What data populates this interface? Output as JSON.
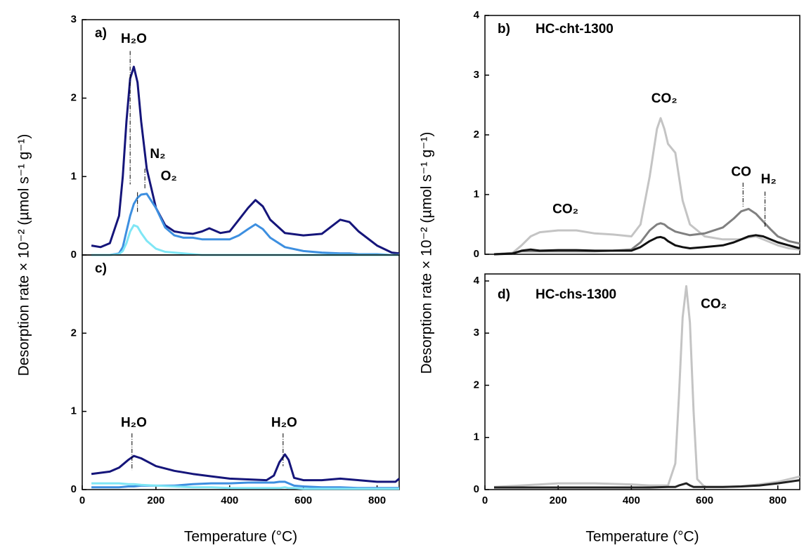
{
  "chart_data": [
    {
      "type": "line",
      "panel_label": "a)",
      "y_label": "Desorption rate × 10⁻² (µmol s⁻¹ g⁻¹)",
      "x": [
        25,
        50,
        75,
        100,
        110,
        120,
        130,
        140,
        150,
        160,
        175,
        200,
        225,
        250,
        275,
        300,
        325,
        345,
        375,
        400,
        425,
        450,
        470,
        490,
        510,
        550,
        600,
        650,
        700,
        725,
        750,
        800,
        840,
        860
      ],
      "xlim": [
        0,
        860
      ],
      "ylim": [
        0,
        3
      ],
      "yticks": [
        0,
        1,
        2,
        3
      ],
      "series": [
        {
          "name": "H₂O",
          "color": "#15157a",
          "label_color": "#1f1fd6",
          "values": [
            0.12,
            0.1,
            0.15,
            0.5,
            1.0,
            1.7,
            2.25,
            2.4,
            2.2,
            1.7,
            1.1,
            0.6,
            0.38,
            0.3,
            0.28,
            0.27,
            0.3,
            0.34,
            0.28,
            0.3,
            0.45,
            0.6,
            0.7,
            0.62,
            0.45,
            0.28,
            0.25,
            0.27,
            0.45,
            0.42,
            0.3,
            0.12,
            0.03,
            0.02
          ]
        },
        {
          "name": "N₂",
          "color": "#3d8fe0",
          "label_color": "#35a8ec",
          "values": [
            0,
            0,
            0,
            0.02,
            0.1,
            0.3,
            0.5,
            0.65,
            0.73,
            0.77,
            0.78,
            0.6,
            0.35,
            0.25,
            0.22,
            0.22,
            0.2,
            0.2,
            0.2,
            0.2,
            0.25,
            0.33,
            0.39,
            0.33,
            0.22,
            0.1,
            0.05,
            0.03,
            0.02,
            0.02,
            0.01,
            0.01,
            0,
            0
          ]
        },
        {
          "name": "O₂",
          "color": "#7fe6f5",
          "label_color": "#3fdcf0",
          "values": [
            0,
            0,
            0,
            0.01,
            0.05,
            0.15,
            0.3,
            0.38,
            0.36,
            0.28,
            0.18,
            0.08,
            0.04,
            0.03,
            0.02,
            0.01,
            0,
            0,
            0,
            0,
            0,
            0,
            0,
            0,
            0,
            0,
            0,
            0,
            0,
            0,
            0,
            0,
            0,
            0
          ]
        }
      ]
    },
    {
      "type": "line",
      "panel_label": "c)",
      "x_label": "Temperature (°C)",
      "x": [
        25,
        75,
        100,
        125,
        140,
        160,
        200,
        250,
        300,
        350,
        400,
        450,
        500,
        520,
        535,
        550,
        560,
        575,
        600,
        650,
        700,
        750,
        800,
        850,
        860
      ],
      "xlim": [
        0,
        860
      ],
      "xticks": [
        0,
        200,
        400,
        600,
        800
      ],
      "ylim": [
        0,
        3
      ],
      "yticks": [
        0,
        1,
        2
      ],
      "series": [
        {
          "name": "H₂O",
          "color": "#15157a",
          "label_color": "#1f1fd6",
          "values": [
            0.2,
            0.23,
            0.28,
            0.38,
            0.43,
            0.4,
            0.3,
            0.24,
            0.2,
            0.17,
            0.14,
            0.13,
            0.12,
            0.18,
            0.35,
            0.45,
            0.38,
            0.15,
            0.12,
            0.12,
            0.14,
            0.12,
            0.1,
            0.1,
            0.14
          ]
        },
        {
          "color": "#3d8fe0",
          "values": [
            0.03,
            0.03,
            0.03,
            0.04,
            0.04,
            0.05,
            0.05,
            0.05,
            0.07,
            0.08,
            0.08,
            0.09,
            0.09,
            0.09,
            0.1,
            0.1,
            0.08,
            0.05,
            0.04,
            0.03,
            0.03,
            0.02,
            0.02,
            0.02,
            0.02
          ]
        },
        {
          "color": "#7fe6f5",
          "values": [
            0.08,
            0.08,
            0.08,
            0.07,
            0.07,
            0.06,
            0.05,
            0.04,
            0.03,
            0.03,
            0.02,
            0.02,
            0.02,
            0.02,
            0.02,
            0.03,
            0.02,
            0.02,
            0.01,
            0.01,
            0.01,
            0.01,
            0.01,
            0.01,
            0.01
          ]
        }
      ]
    },
    {
      "type": "line",
      "panel_label": "b)",
      "subtitle": "HC-cht-1300",
      "subtitle_color": "#f4a07a",
      "y_label": "Desorption rate × 10⁻² (µmol s⁻¹ g⁻¹)",
      "x": [
        25,
        75,
        100,
        125,
        150,
        200,
        250,
        300,
        350,
        400,
        425,
        450,
        470,
        480,
        490,
        500,
        520,
        540,
        560,
        600,
        650,
        680,
        700,
        720,
        740,
        760,
        780,
        800,
        830,
        860
      ],
      "xlim": [
        0,
        860
      ],
      "ylim": [
        0,
        4
      ],
      "yticks": [
        0,
        1,
        2,
        3,
        4
      ],
      "series": [
        {
          "name": "CO₂",
          "color": "#c4c4c4",
          "label_color": "#a9b0b0",
          "values": [
            0,
            0.02,
            0.15,
            0.3,
            0.37,
            0.4,
            0.4,
            0.35,
            0.33,
            0.3,
            0.5,
            1.3,
            2.1,
            2.28,
            2.1,
            1.85,
            1.7,
            0.9,
            0.5,
            0.3,
            0.25,
            0.25,
            0.25,
            0.28,
            0.3,
            0.25,
            0.2,
            0.15,
            0.1,
            0.08
          ]
        },
        {
          "name": "CO",
          "color": "#808080",
          "label_color": "#808080",
          "values": [
            0,
            0.02,
            0.05,
            0.05,
            0.05,
            0.05,
            0.05,
            0.05,
            0.06,
            0.08,
            0.2,
            0.4,
            0.5,
            0.52,
            0.5,
            0.45,
            0.38,
            0.35,
            0.32,
            0.35,
            0.45,
            0.6,
            0.72,
            0.76,
            0.68,
            0.55,
            0.42,
            0.3,
            0.22,
            0.18
          ]
        },
        {
          "name": "H₂",
          "color": "#111111",
          "label_color": "#111111",
          "values": [
            0,
            0.01,
            0.06,
            0.08,
            0.06,
            0.07,
            0.07,
            0.06,
            0.06,
            0.06,
            0.12,
            0.22,
            0.28,
            0.29,
            0.27,
            0.22,
            0.15,
            0.12,
            0.1,
            0.12,
            0.15,
            0.2,
            0.25,
            0.3,
            0.32,
            0.3,
            0.25,
            0.2,
            0.15,
            0.1
          ]
        }
      ]
    },
    {
      "type": "line",
      "panel_label": "d)",
      "subtitle": "HC-chs-1300",
      "subtitle_color": "#b5b5b5",
      "x_label": "Temperature (°C)",
      "x": [
        25,
        100,
        200,
        300,
        400,
        450,
        500,
        520,
        530,
        540,
        550,
        560,
        570,
        580,
        600,
        650,
        700,
        750,
        800,
        860
      ],
      "xlim": [
        0,
        860
      ],
      "xticks": [
        0,
        200,
        400,
        600,
        800
      ],
      "ylim": [
        0,
        4
      ],
      "yticks": [
        0,
        1,
        2,
        3,
        4
      ],
      "series": [
        {
          "name": "CO₂",
          "color": "#c4c4c4",
          "label_color": "#a9b0b0",
          "values": [
            0.05,
            0.08,
            0.12,
            0.12,
            0.1,
            0.08,
            0.08,
            0.5,
            1.8,
            3.3,
            3.9,
            3.2,
            1.5,
            0.2,
            0.05,
            0.05,
            0.06,
            0.1,
            0.15,
            0.25
          ]
        },
        {
          "color": "#222222",
          "values": [
            0.04,
            0.04,
            0.04,
            0.04,
            0.04,
            0.04,
            0.05,
            0.05,
            0.08,
            0.1,
            0.12,
            0.08,
            0.05,
            0.05,
            0.05,
            0.05,
            0.06,
            0.08,
            0.12,
            0.18
          ]
        }
      ]
    }
  ]
}
